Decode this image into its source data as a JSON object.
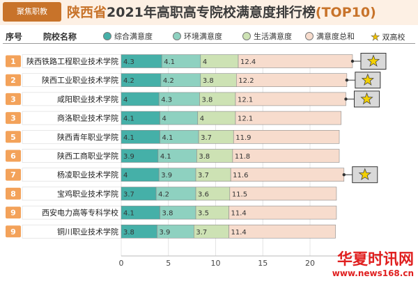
{
  "header": {
    "logo_text": "聚焦职教",
    "title_region": "陕西省",
    "title_main": "2021年高职高专院校满意度排行榜",
    "title_top": "(TOP10)"
  },
  "columns": {
    "rank": "序号",
    "name": "院校名称"
  },
  "chart_data": {
    "type": "bar",
    "orientation": "horizontal",
    "stacked": true,
    "categories": [
      "陕西铁路工程职业技术学院",
      "陕西工业职业技术学院",
      "咸阳职业技术学院",
      "商洛职业技术学院",
      "陕西青年职业学院",
      "陕西工商职业学院",
      "杨凌职业技术学院",
      "宝鸡职业技术学院",
      "西安电力高等专科学校",
      "铜川职业技术学院"
    ],
    "ranks": [
      "1",
      "2",
      "3",
      "3",
      "5",
      "6",
      "7",
      "8",
      "9",
      "9"
    ],
    "series": [
      {
        "name": "综合满意度",
        "color": "#45b0a8",
        "values": [
          4.3,
          4.2,
          4,
          4.1,
          4.1,
          3.9,
          4,
          3.7,
          4.1,
          3.8
        ]
      },
      {
        "name": "环境满意度",
        "color": "#8ed1c0",
        "values": [
          4.1,
          4.2,
          4.3,
          4,
          4.1,
          4.1,
          3.9,
          4.2,
          3.8,
          3.9
        ]
      },
      {
        "name": "生活满意度",
        "color": "#cde2b4",
        "values": [
          4,
          3.8,
          3.8,
          4,
          3.7,
          3.8,
          3.7,
          3.6,
          3.5,
          3.7
        ]
      },
      {
        "name": "满意度总和",
        "color": "#f7dccd",
        "values": [
          12.4,
          12.2,
          12.1,
          12.1,
          11.9,
          11.8,
          11.6,
          11.5,
          11.4,
          11.4
        ]
      }
    ],
    "total_bar_extent": [
      24.5,
      23.9,
      23.8,
      23.3,
      23.1,
      23.1,
      23.6,
      22.8,
      22.8,
      22.7
    ],
    "double_high_marker": {
      "name": "双高校",
      "flags": [
        true,
        true,
        true,
        false,
        false,
        false,
        true,
        false,
        false,
        false
      ]
    },
    "xaxis": {
      "ticks": [
        "0",
        "5",
        "10",
        "15",
        "20"
      ],
      "min": 0,
      "max": 26
    },
    "rank_badge_color": "#f3a25a",
    "star_color": "#f3d000"
  },
  "watermark": {
    "text": "华夏时讯网",
    "url": "www.news168.cn"
  }
}
